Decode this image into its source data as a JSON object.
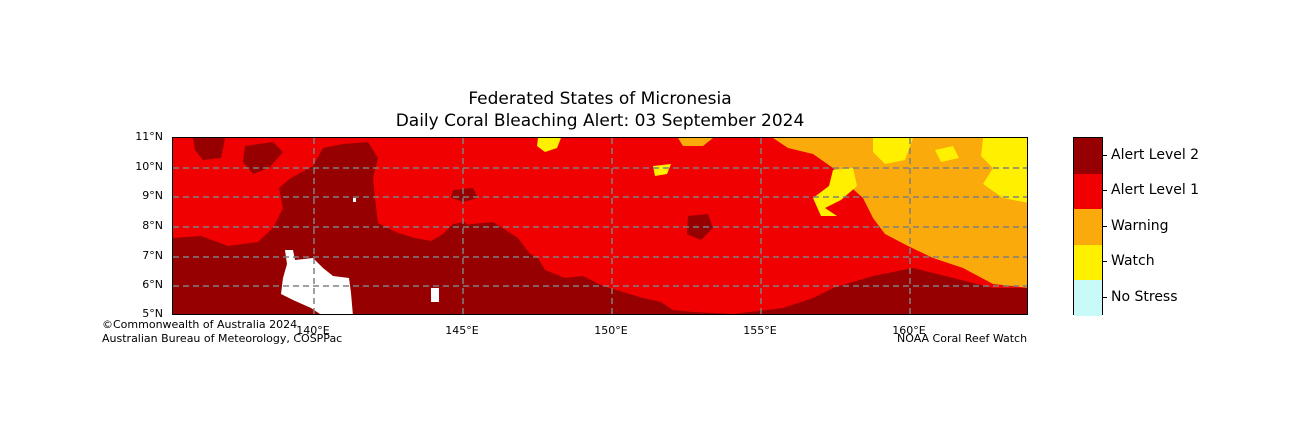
{
  "title": {
    "line1": "Federated States of Micronesia",
    "line2": "Daily Coral Bleaching Alert: 03 September 2024"
  },
  "axes": {
    "lat_labels": [
      "11°N",
      "10°N",
      "9°N",
      "8°N",
      "7°N",
      "6°N",
      "5°N"
    ],
    "lon_labels": [
      "140°E",
      "145°E",
      "150°E",
      "155°E",
      "160°E"
    ],
    "lat_range": [
      5,
      11
    ],
    "lon_range": [
      135.2,
      163.9
    ],
    "grid_lats": [
      6,
      7,
      8,
      9,
      10
    ],
    "grid_lons": [
      140,
      145,
      150,
      155,
      160
    ]
  },
  "legend": {
    "items": [
      {
        "label": "Alert Level 2",
        "color": "#960000"
      },
      {
        "label": "Alert Level 1",
        "color": "#f00000"
      },
      {
        "label": "Warning",
        "color": "#faaa0a"
      },
      {
        "label": "Watch",
        "color": "#fff000"
      },
      {
        "label": "No Stress",
        "color": "#c8fafa"
      }
    ]
  },
  "credits": {
    "left_line1": "©Commonwealth of Australia 2024",
    "left_line2": "Australian Bureau of Meteorology, COSPPac",
    "right": "NOAA Coral Reef Watch"
  },
  "colors": {
    "alert2": "#960000",
    "alert1": "#f00000",
    "warning": "#faaa0a",
    "watch": "#fff000",
    "land": "#ffffff",
    "grid": "#808080"
  }
}
